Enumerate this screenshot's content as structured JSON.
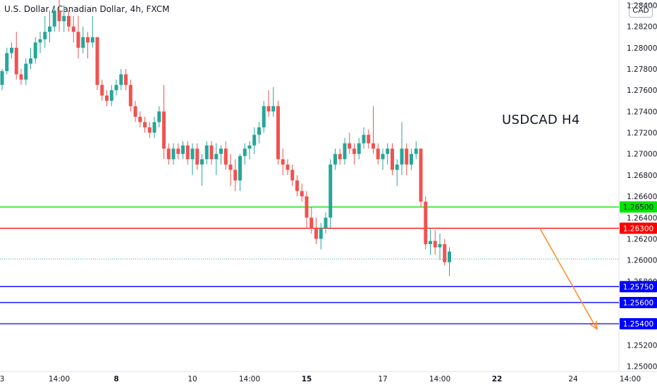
{
  "header": {
    "title": "U.S. Dollar / Canadian Dollar, 4h, FXCM",
    "currency": "CAD"
  },
  "colors": {
    "up": "#26a69a",
    "down": "#ef5350",
    "level_green": "#00e600",
    "level_red": "#ff0000",
    "level_blue": "#0000ff",
    "arrow": "#ff8c26"
  },
  "chart_data": {
    "type": "candlestick",
    "title": "U.S. Dollar / Canadian Dollar, 4h, FXCM",
    "annotation": "USDCAD H4",
    "ylim": [
      1.2495,
      1.2845
    ],
    "y_ticks": [
      "1.25000",
      "1.25200",
      "1.25800",
      "1.26000",
      "1.26200",
      "1.26400",
      "1.26600",
      "1.26800",
      "1.27000",
      "1.27200",
      "1.27400",
      "1.27600",
      "1.27800",
      "1.28000",
      "1.28200",
      "1.28400"
    ],
    "x_ticks": [
      {
        "label": "3",
        "bar": 0,
        "bold": false
      },
      {
        "label": "14:00",
        "bar": 12,
        "bold": false
      },
      {
        "label": "8",
        "bar": 24,
        "bold": true
      },
      {
        "label": "10",
        "bar": 40,
        "bold": false
      },
      {
        "label": "14:00",
        "bar": 52,
        "bold": false
      },
      {
        "label": "15",
        "bar": 64,
        "bold": true
      },
      {
        "label": "17",
        "bar": 80,
        "bold": false
      },
      {
        "label": "14:00",
        "bar": 92,
        "bold": false
      },
      {
        "label": "22",
        "bar": 104,
        "bold": true
      },
      {
        "label": "24",
        "bar": 120,
        "bold": false
      },
      {
        "label": "14:00",
        "bar": 132,
        "bold": false
      }
    ],
    "x_axis_end_label": "",
    "levels": [
      {
        "price": 1.265,
        "label": "1.26500",
        "color": "level_green"
      },
      {
        "price": 1.263,
        "label": "1.26300",
        "color": "level_red"
      },
      {
        "price": 1.2575,
        "label": "1.25750",
        "color": "level_blue"
      },
      {
        "price": 1.256,
        "label": "1.25600",
        "color": "level_blue"
      },
      {
        "price": 1.254,
        "label": "1.25400",
        "color": "level_blue"
      }
    ],
    "current_price": 1.2601,
    "forecast_arrow": {
      "from": {
        "bar": 113,
        "price": 1.263
      },
      "to": {
        "bar": 125,
        "price": 1.2535
      }
    },
    "candles": [
      [
        1.2765,
        1.278,
        1.276,
        1.2778
      ],
      [
        1.2778,
        1.28,
        1.2775,
        1.2795
      ],
      [
        1.2795,
        1.2805,
        1.279,
        1.28
      ],
      [
        1.28,
        1.2815,
        1.277,
        1.2775
      ],
      [
        1.2775,
        1.278,
        1.2765,
        1.277
      ],
      [
        1.277,
        1.279,
        1.2765,
        1.2785
      ],
      [
        1.2785,
        1.28,
        1.278,
        1.279
      ],
      [
        1.279,
        1.281,
        1.2785,
        1.2805
      ],
      [
        1.2805,
        1.2815,
        1.2795,
        1.2808
      ],
      [
        1.2808,
        1.283,
        1.28,
        1.2815
      ],
      [
        1.2815,
        1.2835,
        1.2805,
        1.282
      ],
      [
        1.282,
        1.284,
        1.2815,
        1.2835
      ],
      [
        1.2835,
        1.2845,
        1.2815,
        1.2825
      ],
      [
        1.2825,
        1.284,
        1.2815,
        1.283
      ],
      [
        1.283,
        1.2835,
        1.2815,
        1.282
      ],
      [
        1.282,
        1.283,
        1.2805,
        1.2815
      ],
      [
        1.2815,
        1.283,
        1.279,
        1.28
      ],
      [
        1.28,
        1.282,
        1.2795,
        1.281
      ],
      [
        1.281,
        1.2815,
        1.279,
        1.2805
      ],
      [
        1.2805,
        1.283,
        1.28,
        1.281
      ],
      [
        1.281,
        1.281,
        1.276,
        1.2765
      ],
      [
        1.2765,
        1.277,
        1.275,
        1.2755
      ],
      [
        1.2755,
        1.276,
        1.2745,
        1.275
      ],
      [
        1.275,
        1.2765,
        1.2745,
        1.276
      ],
      [
        1.276,
        1.277,
        1.2755,
        1.2765
      ],
      [
        1.2765,
        1.278,
        1.276,
        1.2775
      ],
      [
        1.2775,
        1.278,
        1.276,
        1.2765
      ],
      [
        1.2765,
        1.277,
        1.274,
        1.2745
      ],
      [
        1.2745,
        1.275,
        1.273,
        1.2735
      ],
      [
        1.2735,
        1.274,
        1.2725,
        1.273
      ],
      [
        1.273,
        1.2735,
        1.272,
        1.2725
      ],
      [
        1.2725,
        1.273,
        1.2715,
        1.272
      ],
      [
        1.272,
        1.2735,
        1.2715,
        1.273
      ],
      [
        1.273,
        1.2745,
        1.2725,
        1.274
      ],
      [
        1.274,
        1.2765,
        1.2695,
        1.2705
      ],
      [
        1.2705,
        1.271,
        1.269,
        1.2695
      ],
      [
        1.2695,
        1.271,
        1.269,
        1.2705
      ],
      [
        1.2705,
        1.271,
        1.2695,
        1.27
      ],
      [
        1.27,
        1.2712,
        1.2695,
        1.2708
      ],
      [
        1.2708,
        1.2712,
        1.269,
        1.2695
      ],
      [
        1.2695,
        1.271,
        1.268,
        1.2705
      ],
      [
        1.2705,
        1.271,
        1.2685,
        1.269
      ],
      [
        1.269,
        1.27,
        1.267,
        1.2695
      ],
      [
        1.2695,
        1.2712,
        1.269,
        1.2708
      ],
      [
        1.2708,
        1.2712,
        1.269,
        1.2695
      ],
      [
        1.2695,
        1.271,
        1.268,
        1.27
      ],
      [
        1.27,
        1.2708,
        1.269,
        1.2705
      ],
      [
        1.2705,
        1.2712,
        1.2685,
        1.269
      ],
      [
        1.269,
        1.27,
        1.267,
        1.2685
      ],
      [
        1.2685,
        1.2695,
        1.2665,
        1.2675
      ],
      [
        1.2675,
        1.27,
        1.2665,
        1.2698
      ],
      [
        1.2698,
        1.271,
        1.269,
        1.2705
      ],
      [
        1.2705,
        1.2712,
        1.2695,
        1.2708
      ],
      [
        1.2708,
        1.2725,
        1.27,
        1.2718
      ],
      [
        1.2718,
        1.273,
        1.271,
        1.2725
      ],
      [
        1.2725,
        1.275,
        1.272,
        1.2745
      ],
      [
        1.2745,
        1.276,
        1.2735,
        1.274
      ],
      [
        1.274,
        1.2763,
        1.2735,
        1.2745
      ],
      [
        1.2745,
        1.275,
        1.269,
        1.2695
      ],
      [
        1.2695,
        1.2705,
        1.268,
        1.269
      ],
      [
        1.269,
        1.2695,
        1.268,
        1.2685
      ],
      [
        1.2685,
        1.269,
        1.267,
        1.2675
      ],
      [
        1.2675,
        1.268,
        1.266,
        1.2665
      ],
      [
        1.2665,
        1.2672,
        1.2655,
        1.266
      ],
      [
        1.266,
        1.2665,
        1.263,
        1.264
      ],
      [
        1.264,
        1.265,
        1.2625,
        1.263
      ],
      [
        1.263,
        1.264,
        1.2615,
        1.262
      ],
      [
        1.262,
        1.2635,
        1.261,
        1.263
      ],
      [
        1.263,
        1.2645,
        1.2625,
        1.264
      ],
      [
        1.264,
        1.2695,
        1.263,
        1.269
      ],
      [
        1.269,
        1.2705,
        1.2685,
        1.27
      ],
      [
        1.27,
        1.2705,
        1.269,
        1.2695
      ],
      [
        1.2695,
        1.2715,
        1.269,
        1.271
      ],
      [
        1.271,
        1.272,
        1.27,
        1.2705
      ],
      [
        1.2705,
        1.271,
        1.269,
        1.27
      ],
      [
        1.27,
        1.2715,
        1.2695,
        1.271
      ],
      [
        1.271,
        1.2725,
        1.2705,
        1.2718
      ],
      [
        1.2718,
        1.2723,
        1.2705,
        1.271
      ],
      [
        1.271,
        1.2745,
        1.27,
        1.2705
      ],
      [
        1.2705,
        1.271,
        1.269,
        1.2695
      ],
      [
        1.2695,
        1.2705,
        1.2685,
        1.27
      ],
      [
        1.27,
        1.271,
        1.269,
        1.2705
      ],
      [
        1.2705,
        1.271,
        1.268,
        1.2685
      ],
      [
        1.2685,
        1.2695,
        1.267,
        1.269
      ],
      [
        1.269,
        1.273,
        1.268,
        1.2705
      ],
      [
        1.2705,
        1.271,
        1.268,
        1.269
      ],
      [
        1.269,
        1.2705,
        1.2685,
        1.27
      ],
      [
        1.27,
        1.2712,
        1.2695,
        1.2705
      ],
      [
        1.2705,
        1.2705,
        1.265,
        1.2655
      ],
      [
        1.2655,
        1.266,
        1.261,
        1.2615
      ],
      [
        1.2615,
        1.263,
        1.2605,
        1.2618
      ],
      [
        1.2618,
        1.2628,
        1.2605,
        1.2612
      ],
      [
        1.2612,
        1.2625,
        1.26,
        1.2615
      ],
      [
        1.2615,
        1.262,
        1.2595,
        1.2598
      ],
      [
        1.2598,
        1.2612,
        1.2585,
        1.2608
      ]
    ]
  }
}
